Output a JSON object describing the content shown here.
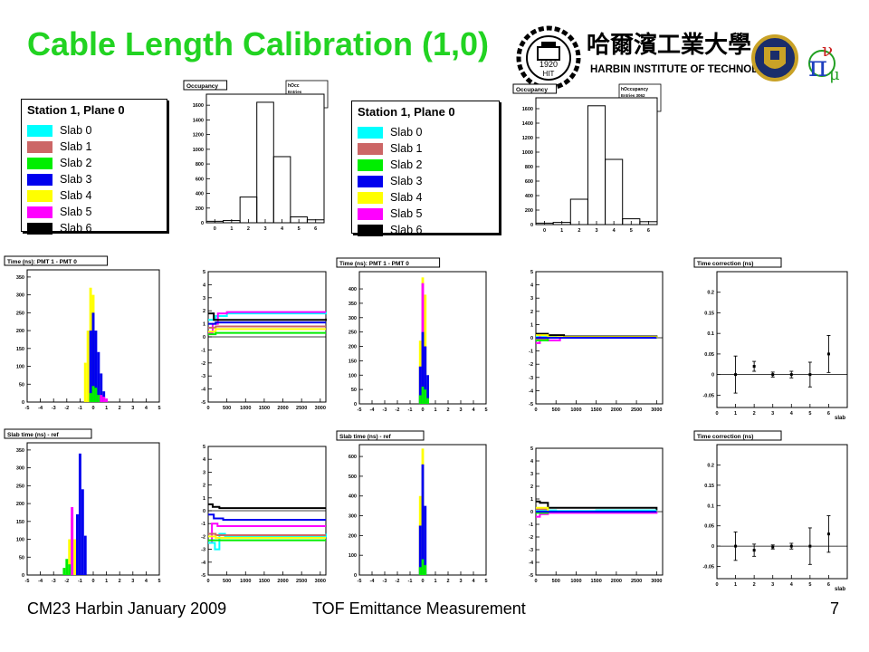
{
  "slide": {
    "title": "Cable Length Calibration (1,0)",
    "footer_left": "CM23 Harbin January 2009",
    "footer_center": "TOF Emittance Measurement",
    "page_number": "7",
    "logo_text": "HARBIN INSTITUTE OF TECHNOLOGY",
    "logo_chinese": "哈爾濱工業大學",
    "logo_year": "1920",
    "logo_abbrev": "HIT"
  },
  "legend": {
    "title": "Station 1, Plane 0",
    "items": [
      {
        "label": "Slab 0",
        "color": "#00ffff"
      },
      {
        "label": "Slab 1",
        "color": "#cc6666"
      },
      {
        "label": "Slab 2",
        "color": "#00ee00"
      },
      {
        "label": "Slab 3",
        "color": "#0000ee"
      },
      {
        "label": "Slab 4",
        "color": "#ffff00"
      },
      {
        "label": "Slab 5",
        "color": "#ff00ff"
      },
      {
        "label": "Slab 6",
        "color": "#000000"
      }
    ]
  },
  "chart_data": [
    {
      "id": "occ-left",
      "type": "bar",
      "title": "Occupancy",
      "stats": {
        "name": "hOcc",
        "rows": [
          "Entries",
          "Mean",
          "RMS"
        ]
      },
      "x": [
        0,
        1,
        2,
        3,
        4,
        5,
        6
      ],
      "values": [
        20,
        30,
        350,
        1640,
        900,
        80,
        40
      ],
      "ylim": [
        0,
        1750
      ],
      "yticks": [
        0,
        200,
        400,
        600,
        800,
        1000,
        1200,
        1400,
        1600
      ]
    },
    {
      "id": "occ-right",
      "type": "bar",
      "title": "Occupancy",
      "stats": {
        "name": "hOccupancy",
        "rows": [
          "Entries  3062",
          "Mean       3.2",
          "RMS   0.9017"
        ]
      },
      "x": [
        0,
        1,
        2,
        3,
        4,
        5,
        6
      ],
      "values": [
        20,
        30,
        350,
        1640,
        900,
        80,
        40
      ],
      "ylim": [
        0,
        1750
      ],
      "yticks": [
        0,
        200,
        400,
        600,
        800,
        1000,
        1200,
        1400,
        1600
      ]
    },
    {
      "id": "dt-r1-left",
      "type": "bar",
      "title": "Time (ns): PMT 1 - PMT 0",
      "xlim": [
        -5,
        5
      ],
      "xticks": [
        -5,
        -4,
        -3,
        -2,
        -1,
        0,
        1,
        2,
        3,
        4,
        5
      ],
      "ylim": [
        0,
        370
      ],
      "yticks": [
        0,
        50,
        100,
        150,
        200,
        250,
        300,
        350
      ],
      "series": [
        {
          "name": "Slab 4",
          "color": "#ffff00",
          "centers": [
            -0.6,
            -0.4,
            -0.2,
            0.0
          ],
          "values": [
            110,
            200,
            320,
            300
          ]
        },
        {
          "name": "Slab 3",
          "color": "#0000ee",
          "centers": [
            -0.2,
            0.0,
            0.2,
            0.4,
            0.6,
            0.8
          ],
          "values": [
            200,
            250,
            200,
            140,
            80,
            30
          ]
        },
        {
          "name": "Slab 2",
          "color": "#00ee00",
          "centers": [
            -0.2,
            0.0,
            0.2,
            0.4
          ],
          "values": [
            25,
            45,
            40,
            20
          ]
        },
        {
          "name": "Slab 5",
          "color": "#ff00ff",
          "centers": [
            0.6,
            0.8,
            1.0
          ],
          "values": [
            20,
            15,
            10
          ]
        }
      ]
    },
    {
      "id": "dt-r1-right",
      "type": "bar",
      "title": "Time (ns): PMT 1 - PMT 0",
      "xlim": [
        -5,
        5
      ],
      "xticks": [
        -5,
        -4,
        -3,
        -2,
        -1,
        0,
        1,
        2,
        3,
        4,
        5
      ],
      "ylim": [
        0,
        460
      ],
      "yticks": [
        0,
        50,
        100,
        150,
        200,
        250,
        300,
        350,
        400
      ],
      "series": [
        {
          "name": "Slab 4",
          "color": "#ffff00",
          "centers": [
            -0.2,
            0.0,
            0.2
          ],
          "values": [
            220,
            440,
            380
          ]
        },
        {
          "name": "Slab 5",
          "color": "#ff00ff",
          "centers": [
            0.0
          ],
          "values": [
            420
          ]
        },
        {
          "name": "Slab 3",
          "color": "#0000ee",
          "centers": [
            -0.2,
            0.0,
            0.2,
            0.4
          ],
          "values": [
            130,
            250,
            200,
            100
          ]
        },
        {
          "name": "Slab 2",
          "color": "#00ee00",
          "centers": [
            -0.2,
            0.0,
            0.2,
            0.4
          ],
          "values": [
            30,
            60,
            50,
            20
          ]
        }
      ]
    },
    {
      "id": "dt-r2-left",
      "type": "bar",
      "title": "Slab time (ns) - ref",
      "xlim": [
        -5,
        5
      ],
      "xticks": [
        -5,
        -4,
        -3,
        -2,
        -1,
        0,
        1,
        2,
        3,
        4,
        5
      ],
      "ylim": [
        0,
        370
      ],
      "yticks": [
        0,
        50,
        100,
        150,
        200,
        250,
        300,
        350
      ],
      "series": [
        {
          "name": "Slab 4",
          "color": "#ffff00",
          "centers": [
            -1.8,
            -1.6,
            -1.4
          ],
          "values": [
            100,
            160,
            100
          ]
        },
        {
          "name": "Slab 5",
          "color": "#ff00ff",
          "centers": [
            -1.6
          ],
          "values": [
            190
          ]
        },
        {
          "name": "Slab 2",
          "color": "#00ee00",
          "centers": [
            -2.2,
            -2.0,
            -1.8
          ],
          "values": [
            20,
            45,
            30
          ]
        },
        {
          "name": "Slab 3",
          "color": "#0000ee",
          "centers": [
            -1.2,
            -1.0,
            -0.8,
            -0.6
          ],
          "values": [
            170,
            340,
            240,
            110
          ]
        }
      ]
    },
    {
      "id": "dt-r2-right",
      "type": "bar",
      "title": "Slab time (ns) - ref",
      "xlim": [
        -5,
        5
      ],
      "xticks": [
        -5,
        -4,
        -3,
        -2,
        -1,
        0,
        1,
        2,
        3,
        4,
        5
      ],
      "ylim": [
        0,
        660
      ],
      "yticks": [
        0,
        100,
        200,
        300,
        400,
        500,
        600
      ],
      "series": [
        {
          "name": "Slab 4",
          "color": "#ffff00",
          "centers": [
            -0.2,
            0.0
          ],
          "values": [
            400,
            640
          ]
        },
        {
          "name": "Slab 3",
          "color": "#0000ee",
          "centers": [
            -0.2,
            0.0,
            0.2
          ],
          "values": [
            250,
            560,
            350
          ]
        },
        {
          "name": "Slab 2",
          "color": "#00ee00",
          "centers": [
            -0.2,
            0.0,
            0.2
          ],
          "values": [
            40,
            80,
            50
          ]
        }
      ]
    },
    {
      "id": "conv-r1-left",
      "type": "line",
      "xlim": [
        0,
        3150
      ],
      "xticks": [
        0,
        500,
        1000,
        1500,
        2000,
        2500,
        3000
      ],
      "ylim": [
        -5,
        5
      ],
      "yticks": [
        -5,
        -4,
        -3,
        -2,
        -1,
        0,
        1,
        2,
        3,
        4,
        5
      ],
      "series": [
        {
          "name": "Slab 0",
          "color": "#00ffff",
          "x": [
            0,
            200,
            500,
            3150
          ],
          "y": [
            1.3,
            1.6,
            1.8,
            1.9
          ]
        },
        {
          "name": "Slab 5",
          "color": "#ff00ff",
          "x": [
            0,
            120,
            260,
            500,
            3150
          ],
          "y": [
            0.3,
            1.0,
            1.8,
            1.9,
            1.9
          ]
        },
        {
          "name": "Slab 6",
          "color": "#000000",
          "x": [
            0,
            150,
            350,
            3150
          ],
          "y": [
            1.8,
            1.3,
            1.3,
            1.4
          ]
        },
        {
          "name": "Slab 3",
          "color": "#0000ee",
          "x": [
            0,
            200,
            3150
          ],
          "y": [
            1.0,
            1.1,
            1.1
          ]
        },
        {
          "name": "Slab 1",
          "color": "#cc6666",
          "x": [
            0,
            200,
            3150
          ],
          "y": [
            0.7,
            0.8,
            0.8
          ]
        },
        {
          "name": "Slab 4",
          "color": "#ffff00",
          "x": [
            0,
            200,
            3150
          ],
          "y": [
            0.4,
            0.6,
            0.6
          ]
        },
        {
          "name": "Slab 2",
          "color": "#00ee00",
          "x": [
            0,
            200,
            3150
          ],
          "y": [
            0.2,
            0.3,
            0.3
          ]
        }
      ]
    },
    {
      "id": "conv-r1-right",
      "type": "line",
      "xlim": [
        0,
        3150
      ],
      "xticks": [
        0,
        500,
        1000,
        1500,
        2000,
        2500,
        3000
      ],
      "ylim": [
        -5,
        5
      ],
      "yticks": [
        -5,
        -4,
        -3,
        -2,
        -1,
        0,
        1,
        2,
        3,
        4,
        5
      ],
      "series": [
        {
          "name": "Slab 0",
          "color": "#00ffff",
          "x": [
            0,
            500,
            1500,
            3000
          ],
          "y": [
            0.1,
            0.0,
            0.05,
            0.0
          ]
        },
        {
          "name": "Slab 5",
          "color": "#ff00ff",
          "x": [
            0,
            100,
            300,
            600,
            3000
          ],
          "y": [
            -0.4,
            0.2,
            -0.2,
            0.0,
            0.0
          ]
        },
        {
          "name": "Slab 6",
          "color": "#000000",
          "x": [
            0,
            300,
            700,
            3000
          ],
          "y": [
            0.3,
            0.2,
            0.1,
            0.0
          ]
        },
        {
          "name": "Slab 1",
          "color": "#cc6666",
          "x": [
            0,
            300,
            3000
          ],
          "y": [
            -0.1,
            0.0,
            0.0
          ]
        },
        {
          "name": "Slab 4",
          "color": "#ffff00",
          "x": [
            0,
            300,
            3000
          ],
          "y": [
            0.2,
            0.05,
            0.0
          ]
        },
        {
          "name": "Slab 2",
          "color": "#00ee00",
          "x": [
            0,
            300,
            3000
          ],
          "y": [
            -0.2,
            0.0,
            0.0
          ]
        },
        {
          "name": "Slab 3",
          "color": "#0000ee",
          "x": [
            0,
            300,
            3000
          ],
          "y": [
            0.0,
            0.0,
            0.0
          ]
        }
      ]
    },
    {
      "id": "conv-r2-left",
      "type": "line",
      "xlim": [
        0,
        3150
      ],
      "xticks": [
        0,
        500,
        1000,
        1500,
        2000,
        2500,
        3000
      ],
      "ylim": [
        -5,
        5
      ],
      "yticks": [
        -5,
        -4,
        -3,
        -2,
        -1,
        0,
        1,
        2,
        3,
        4,
        5
      ],
      "series": [
        {
          "name": "Slab 6",
          "color": "#000000",
          "x": [
            0,
            120,
            300,
            3150
          ],
          "y": [
            0.5,
            0.3,
            0.2,
            0.2
          ]
        },
        {
          "name": "Slab 3",
          "color": "#0000ee",
          "x": [
            0,
            150,
            400,
            3150
          ],
          "y": [
            -0.3,
            -0.6,
            -0.7,
            -0.7
          ]
        },
        {
          "name": "Slab 5",
          "color": "#ff00ff",
          "x": [
            0,
            100,
            250,
            3150
          ],
          "y": [
            -2.5,
            -1.0,
            -1.2,
            -1.2
          ]
        },
        {
          "name": "Slab 0",
          "color": "#00ffff",
          "x": [
            0,
            180,
            300,
            450,
            3150
          ],
          "y": [
            -2.5,
            -3.0,
            -1.8,
            -2.0,
            -1.8
          ]
        },
        {
          "name": "Slab 1",
          "color": "#cc6666",
          "x": [
            0,
            200,
            3150
          ],
          "y": [
            -1.8,
            -1.9,
            -1.9
          ]
        },
        {
          "name": "Slab 4",
          "color": "#ffff00",
          "x": [
            0,
            200,
            3150
          ],
          "y": [
            -2.0,
            -2.1,
            -2.1
          ]
        },
        {
          "name": "Slab 2",
          "color": "#00ee00",
          "x": [
            0,
            200,
            3150
          ],
          "y": [
            -2.3,
            -2.3,
            -2.3
          ]
        }
      ]
    },
    {
      "id": "conv-r2-right",
      "type": "line",
      "xlim": [
        0,
        3150
      ],
      "xticks": [
        0,
        500,
        1000,
        1500,
        2000,
        2500,
        3000
      ],
      "ylim": [
        -5,
        5
      ],
      "yticks": [
        -5,
        -4,
        -3,
        -2,
        -1,
        0,
        1,
        2,
        3,
        4,
        5
      ],
      "series": [
        {
          "name": "Slab 6",
          "color": "#000000",
          "x": [
            0,
            100,
            300,
            3000
          ],
          "y": [
            0.8,
            0.7,
            0.3,
            0.1
          ]
        },
        {
          "name": "Slab 5",
          "color": "#ff00ff",
          "x": [
            0,
            100,
            300,
            3000
          ],
          "y": [
            -0.4,
            -0.2,
            -0.1,
            0.0
          ]
        },
        {
          "name": "Slab 0",
          "color": "#00ffff",
          "x": [
            0,
            500,
            1500,
            3000
          ],
          "y": [
            0.1,
            0.05,
            0.1,
            0.1
          ]
        },
        {
          "name": "Slab 1",
          "color": "#cc6666",
          "x": [
            0,
            300,
            3000
          ],
          "y": [
            0.2,
            0.0,
            0.0
          ]
        },
        {
          "name": "Slab 4",
          "color": "#ffff00",
          "x": [
            0,
            300,
            3000
          ],
          "y": [
            0.3,
            0.0,
            0.0
          ]
        },
        {
          "name": "Slab 2",
          "color": "#00ee00",
          "x": [
            0,
            300,
            3000
          ],
          "y": [
            -0.1,
            0.0,
            0.0
          ]
        },
        {
          "name": "Slab 3",
          "color": "#0000ee",
          "x": [
            0,
            300,
            3000
          ],
          "y": [
            0.0,
            0.0,
            0.0
          ]
        }
      ]
    },
    {
      "id": "corr-r1",
      "type": "scatter",
      "title": "Time correction (ns)",
      "xlabel": "slab",
      "xlim": [
        0,
        7
      ],
      "xticks": [
        0,
        1,
        2,
        3,
        4,
        5,
        6
      ],
      "ylim": [
        -0.08,
        0.25
      ],
      "yticks": [
        -0.05,
        0,
        0.05,
        0.1,
        0.15,
        0.2
      ],
      "points": [
        {
          "x": 1,
          "y": 0.0,
          "err": 0.045
        },
        {
          "x": 2,
          "y": 0.02,
          "err": 0.012
        },
        {
          "x": 3,
          "y": 0.0,
          "err": 0.006
        },
        {
          "x": 4,
          "y": 0.0,
          "err": 0.008
        },
        {
          "x": 5,
          "y": 0.0,
          "err": 0.03
        },
        {
          "x": 6,
          "y": 0.05,
          "err": 0.045
        }
      ]
    },
    {
      "id": "corr-r2",
      "type": "scatter",
      "title": "Time correction (ns)",
      "xlabel": "slab",
      "xlim": [
        0,
        7
      ],
      "xticks": [
        0,
        1,
        2,
        3,
        4,
        5,
        6
      ],
      "ylim": [
        -0.08,
        0.25
      ],
      "yticks": [
        -0.05,
        0,
        0.05,
        0.1,
        0.15,
        0.2
      ],
      "points": [
        {
          "x": 1,
          "y": 0.0,
          "err": 0.035
        },
        {
          "x": 2,
          "y": -0.01,
          "err": 0.015
        },
        {
          "x": 3,
          "y": -0.002,
          "err": 0.005
        },
        {
          "x": 4,
          "y": 0.0,
          "err": 0.007
        },
        {
          "x": 5,
          "y": 0.0,
          "err": 0.045
        },
        {
          "x": 6,
          "y": 0.03,
          "err": 0.045
        }
      ]
    }
  ]
}
